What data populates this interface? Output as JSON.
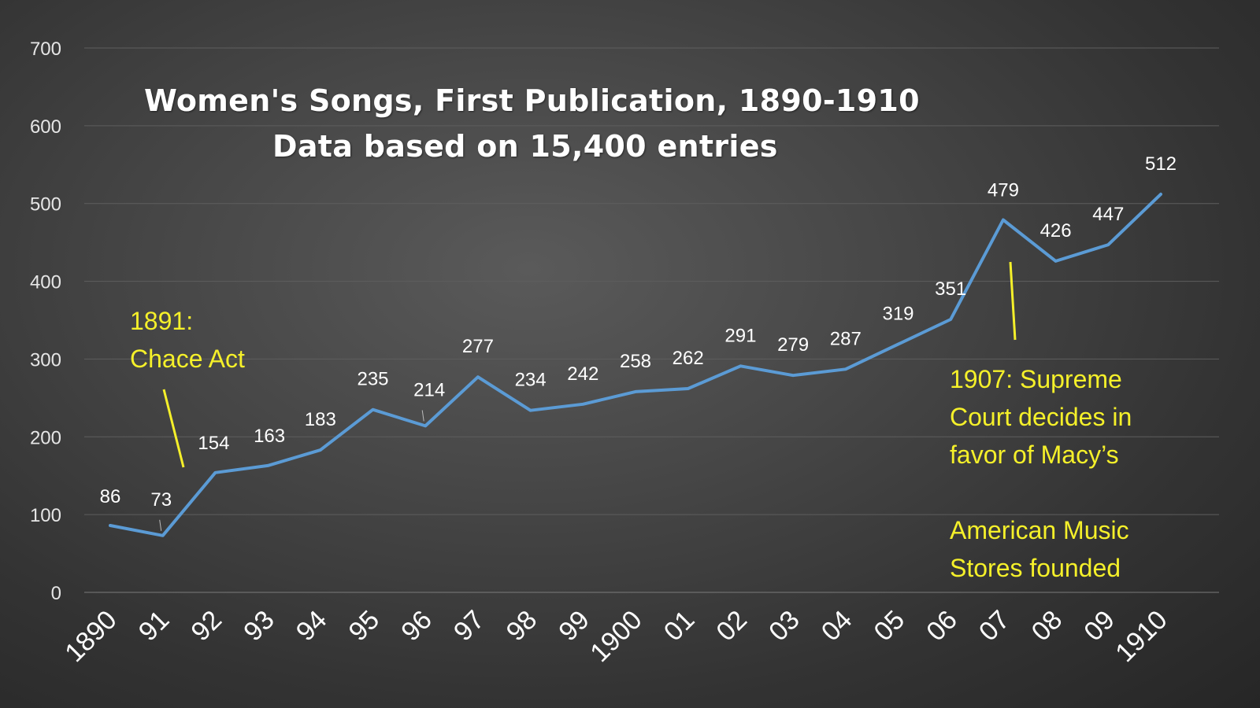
{
  "chart_data": {
    "type": "line",
    "title": "Women's Songs, First Publication, 1890-1910",
    "subtitle": "Data based on 15,400 entries",
    "categories": [
      "1890",
      "91",
      "92",
      "93",
      "94",
      "95",
      "96",
      "97",
      "98",
      "99",
      "1900",
      "01",
      "02",
      "03",
      "04",
      "05",
      "06",
      "07",
      "08",
      "09",
      "1910"
    ],
    "series": [
      {
        "values": [
          86,
          73,
          154,
          163,
          183,
          235,
          214,
          277,
          234,
          242,
          258,
          262,
          291,
          279,
          287,
          319,
          351,
          479,
          426,
          447,
          512
        ]
      }
    ],
    "ylim": [
      0,
      700
    ],
    "yticks": [
      0,
      100,
      200,
      300,
      400,
      500,
      600,
      700
    ],
    "grid": true,
    "line_color": "#5b9bd5",
    "annotations": [
      {
        "lines": [
          "1891:",
          "Chace Act"
        ],
        "color": "#f5f02a"
      },
      {
        "lines": [
          "1907: Supreme",
          "Court decides in",
          "favor of Macy’s",
          "",
          "American Music",
          "Stores founded"
        ],
        "color": "#f5f02a"
      }
    ]
  }
}
